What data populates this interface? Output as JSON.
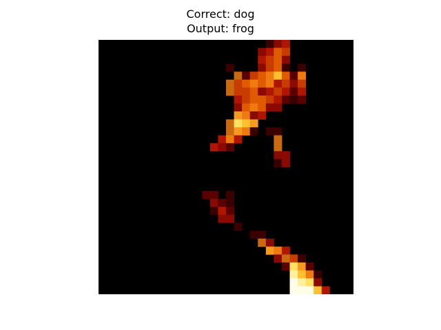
{
  "figure": {
    "title_line1": "Correct: dog",
    "title_line2": "Output: frog"
  },
  "heatmap": {
    "colormap": "afmhot",
    "grid_size": 32,
    "background": "#000000",
    "palette": {
      "dk": "#3a0000",
      "dr": "#5a0000",
      "rd": "#8a0a00",
      "red": "#b01500",
      "ro": "#c83c00",
      "or": "#e05a00",
      "ob": "#ef7a10",
      "am": "#f49a20",
      "bo": "#c96a10",
      "ye": "#ffc030",
      "ly": "#ffe060",
      "cr": "#fff0a0",
      "wh": "#fffce8"
    },
    "cells": [
      [
        21,
        0,
        "dk"
      ],
      [
        22,
        0,
        "rd"
      ],
      [
        23,
        0,
        "red"
      ],
      [
        20,
        1,
        "rd"
      ],
      [
        21,
        1,
        "red"
      ],
      [
        22,
        1,
        "or"
      ],
      [
        23,
        1,
        "ro"
      ],
      [
        20,
        2,
        "red"
      ],
      [
        21,
        2,
        "ro"
      ],
      [
        22,
        2,
        "or"
      ],
      [
        23,
        2,
        "rd"
      ],
      [
        16,
        3,
        "dk"
      ],
      [
        20,
        3,
        "rd"
      ],
      [
        21,
        3,
        "ro"
      ],
      [
        22,
        3,
        "or"
      ],
      [
        23,
        3,
        "dk"
      ],
      [
        25,
        3,
        "dk"
      ],
      [
        17,
        4,
        "bo"
      ],
      [
        18,
        4,
        "dr"
      ],
      [
        19,
        4,
        "ro"
      ],
      [
        20,
        4,
        "or"
      ],
      [
        21,
        4,
        "ob"
      ],
      [
        22,
        4,
        "ye"
      ],
      [
        23,
        4,
        "or"
      ],
      [
        24,
        4,
        "dr"
      ],
      [
        25,
        4,
        "ob"
      ],
      [
        16,
        5,
        "bo"
      ],
      [
        17,
        5,
        "ro"
      ],
      [
        18,
        5,
        "or"
      ],
      [
        19,
        5,
        "ob"
      ],
      [
        20,
        5,
        "or"
      ],
      [
        21,
        5,
        "ob"
      ],
      [
        22,
        5,
        "red"
      ],
      [
        23,
        5,
        "ro"
      ],
      [
        24,
        5,
        "rd"
      ],
      [
        25,
        5,
        "ro"
      ],
      [
        16,
        6,
        "bo"
      ],
      [
        17,
        6,
        "ro"
      ],
      [
        18,
        6,
        "ro"
      ],
      [
        19,
        6,
        "or"
      ],
      [
        20,
        6,
        "rd"
      ],
      [
        21,
        6,
        "red"
      ],
      [
        22,
        6,
        "ro"
      ],
      [
        23,
        6,
        "red"
      ],
      [
        24,
        6,
        "dr"
      ],
      [
        25,
        6,
        "red"
      ],
      [
        17,
        7,
        "red"
      ],
      [
        18,
        7,
        "ro"
      ],
      [
        19,
        7,
        "or"
      ],
      [
        20,
        7,
        "or"
      ],
      [
        21,
        7,
        "ro"
      ],
      [
        22,
        7,
        "red"
      ],
      [
        23,
        7,
        "dr"
      ],
      [
        24,
        7,
        "dk"
      ],
      [
        25,
        7,
        "dr"
      ],
      [
        17,
        8,
        "rd"
      ],
      [
        18,
        8,
        "or"
      ],
      [
        19,
        8,
        "ob"
      ],
      [
        20,
        8,
        "or"
      ],
      [
        21,
        8,
        "rd"
      ],
      [
        22,
        8,
        "rd"
      ],
      [
        17,
        9,
        "am"
      ],
      [
        18,
        9,
        "ob"
      ],
      [
        19,
        9,
        "rd"
      ],
      [
        20,
        9,
        "red"
      ],
      [
        16,
        10,
        "bo"
      ],
      [
        17,
        10,
        "ly"
      ],
      [
        18,
        10,
        "ye"
      ],
      [
        19,
        10,
        "am"
      ],
      [
        16,
        11,
        "bo"
      ],
      [
        17,
        11,
        "am"
      ],
      [
        18,
        11,
        "ob"
      ],
      [
        19,
        11,
        "dk"
      ],
      [
        21,
        11,
        "dk"
      ],
      [
        22,
        11,
        "dk"
      ],
      [
        15,
        12,
        "red"
      ],
      [
        16,
        12,
        "ob"
      ],
      [
        17,
        12,
        "red"
      ],
      [
        22,
        12,
        "bo"
      ],
      [
        14,
        13,
        "red"
      ],
      [
        15,
        13,
        "rd"
      ],
      [
        16,
        13,
        "dr"
      ],
      [
        22,
        13,
        "bo"
      ],
      [
        22,
        14,
        "rd"
      ],
      [
        23,
        14,
        "rd"
      ],
      [
        22,
        15,
        "dk"
      ],
      [
        23,
        15,
        "rd"
      ],
      [
        13,
        19,
        "dr"
      ],
      [
        14,
        19,
        "dr"
      ],
      [
        16,
        19,
        "dk"
      ],
      [
        14,
        20,
        "rd"
      ],
      [
        15,
        20,
        "dr"
      ],
      [
        16,
        20,
        "dk"
      ],
      [
        14,
        21,
        "dk"
      ],
      [
        15,
        21,
        "red"
      ],
      [
        16,
        21,
        "dr"
      ],
      [
        15,
        22,
        "rd"
      ],
      [
        16,
        22,
        "rd"
      ],
      [
        17,
        23,
        "dk"
      ],
      [
        19,
        24,
        "dk"
      ],
      [
        20,
        24,
        "dk"
      ],
      [
        20,
        25,
        "bo"
      ],
      [
        21,
        25,
        "rd"
      ],
      [
        21,
        26,
        "am"
      ],
      [
        22,
        26,
        "ob"
      ],
      [
        23,
        26,
        "red"
      ],
      [
        22,
        27,
        "rd"
      ],
      [
        23,
        27,
        "bo"
      ],
      [
        24,
        27,
        "ro"
      ],
      [
        25,
        27,
        "dk"
      ],
      [
        23,
        28,
        "dr"
      ],
      [
        24,
        28,
        "ly"
      ],
      [
        25,
        28,
        "am"
      ],
      [
        26,
        28,
        "dr"
      ],
      [
        24,
        29,
        "cr"
      ],
      [
        25,
        29,
        "ye"
      ],
      [
        26,
        29,
        "ob"
      ],
      [
        27,
        29,
        "dk"
      ],
      [
        24,
        30,
        "wh"
      ],
      [
        25,
        30,
        "cr"
      ],
      [
        26,
        30,
        "ly"
      ],
      [
        27,
        30,
        "rd"
      ],
      [
        24,
        31,
        "wh"
      ],
      [
        25,
        31,
        "wh"
      ],
      [
        26,
        31,
        "wh"
      ],
      [
        27,
        31,
        "ye"
      ],
      [
        28,
        31,
        "red"
      ]
    ]
  }
}
